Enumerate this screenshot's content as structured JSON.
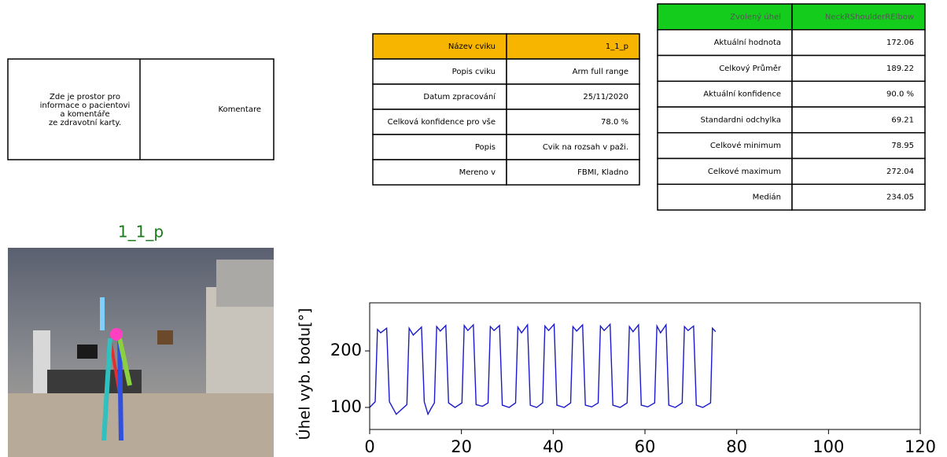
{
  "patient_box": {
    "info_lines": [
      "Zde je prostor pro",
      "informace o pacientovi",
      "a komentáře",
      "ze zdravotní karty."
    ],
    "comment": "Komentare"
  },
  "exercise_table": {
    "rows": [
      [
        "Název cviku",
        "1_1_p"
      ],
      [
        "Popis cviku",
        "Arm full range"
      ],
      [
        "Datum zpracování",
        "25/11/2020"
      ],
      [
        "Celková konfidence pro vše",
        "78.0 %"
      ],
      [
        "Popis",
        "Cvik na rozsah v paži."
      ],
      [
        "Mereno v",
        "FBMI, Kladno"
      ]
    ]
  },
  "angle_table": {
    "rows": [
      [
        "Zvolený úhel",
        "NeckRShoulderRElbow"
      ],
      [
        "Aktuální hodnota",
        "172.06"
      ],
      [
        "Celkový Průměr",
        "189.22"
      ],
      [
        "Aktuální konfidence",
        "90.0 %"
      ],
      [
        "Standardni odchylka",
        "69.21"
      ],
      [
        "Celkové minimum",
        "78.95"
      ],
      [
        "Celkové maximum",
        "272.04"
      ],
      [
        "Medián",
        "234.05"
      ]
    ]
  },
  "image": {
    "title": "1_1_p"
  },
  "chart_data": {
    "type": "line",
    "y_label": "Úhel vyb. bodu[°]",
    "color": "#1a1acc",
    "x": [
      0,
      1.2,
      1.7,
      2.4,
      3.7,
      4.3,
      5.8,
      8.1,
      8.6,
      9.5,
      11.3,
      11.9,
      12.7,
      13.5,
      14.1,
      14.6,
      15.4,
      16.6,
      17.2,
      18.6,
      20.1,
      20.6,
      21.4,
      22.6,
      23.2,
      24.6,
      25.8,
      26.3,
      27.1,
      28.3,
      28.9,
      30.4,
      31.8,
      32.3,
      33.1,
      34.4,
      35.0,
      36.4,
      37.7,
      38.2,
      39.0,
      40.2,
      40.8,
      42.4,
      43.8,
      44.3,
      45.1,
      46.4,
      47.0,
      48.4,
      49.8,
      50.3,
      51.1,
      52.4,
      53.0,
      54.6,
      56.1,
      56.6,
      57.4,
      58.6,
      59.2,
      60.6,
      62.1,
      62.6,
      63.4,
      64.6,
      65.2,
      66.6,
      68.1,
      68.6,
      69.4,
      70.6,
      71.2,
      72.6,
      74.3,
      74.7,
      75.4
    ],
    "values": [
      100,
      110,
      238,
      232,
      240,
      110,
      88,
      105,
      240,
      228,
      242,
      110,
      88,
      100,
      108,
      243,
      235,
      245,
      108,
      100,
      108,
      245,
      236,
      246,
      105,
      102,
      108,
      243,
      236,
      245,
      104,
      100,
      108,
      242,
      232,
      246,
      104,
      100,
      108,
      244,
      236,
      247,
      104,
      100,
      108,
      243,
      235,
      246,
      104,
      101,
      108,
      244,
      236,
      247,
      104,
      100,
      108,
      243,
      234,
      246,
      104,
      101,
      108,
      244,
      232,
      246,
      104,
      100,
      108,
      243,
      236,
      244,
      104,
      100,
      108,
      240,
      234
    ],
    "xlim": [
      0,
      120
    ],
    "ylim": [
      61,
      285
    ],
    "xticks": [
      0,
      20,
      40,
      60,
      80,
      100,
      120
    ],
    "yticks": [
      100,
      200
    ]
  }
}
